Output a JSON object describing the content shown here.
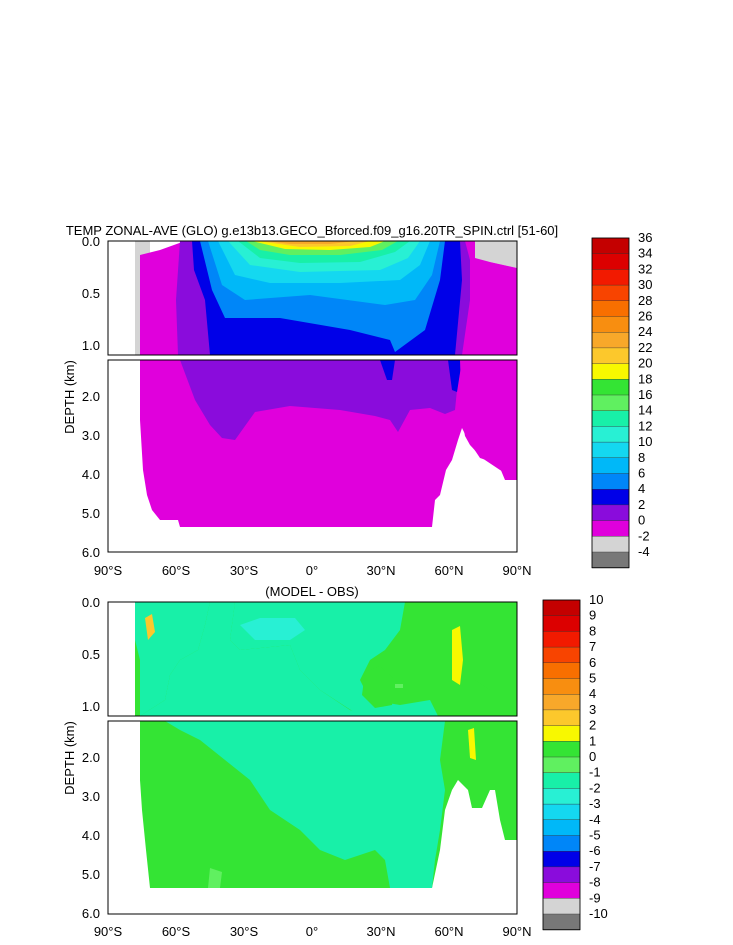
{
  "chart_data": [
    {
      "type": "heatmap",
      "title": "TEMP ZONAL-AVE (GLO) g.e13b13.GECO_Bforced.f09_g16.20TR_SPIN.ctrl [51-60]",
      "ylabel": "DEPTH (km)",
      "x_ticks": [
        "90°S",
        "60°S",
        "30°S",
        "0°",
        "30°N",
        "60°N",
        "90°N"
      ],
      "y_ticks_upper": [
        "0.0",
        "0.5",
        "1.0"
      ],
      "y_ticks_lower": [
        "2.0",
        "3.0",
        "4.0",
        "5.0",
        "6.0"
      ],
      "x_range": [
        -90,
        90
      ],
      "y_range_km": [
        0,
        6
      ],
      "colorbar": {
        "labels": [
          "36",
          "34",
          "32",
          "30",
          "28",
          "26",
          "24",
          "22",
          "20",
          "18",
          "16",
          "14",
          "12",
          "10",
          "8",
          "6",
          "4",
          "2",
          "0",
          "-2",
          "-4"
        ],
        "colors": [
          "#c40000",
          "#dc0000",
          "#f21a00",
          "#f84400",
          "#f86f00",
          "#f88e10",
          "#f8a82a",
          "#fcc82c",
          "#f8f800",
          "#34e434",
          "#60f060",
          "#18f0a8",
          "#28f0d4",
          "#14d8f0",
          "#00b8f8",
          "#0086f8",
          "#0000e8",
          "#8a0cdc",
          "#e000dc",
          "#d4d4d4",
          "#787878"
        ]
      }
    },
    {
      "type": "heatmap",
      "title": "(MODEL - OBS)",
      "ylabel": "DEPTH (km)",
      "x_ticks": [
        "90°S",
        "60°S",
        "30°S",
        "0°",
        "30°N",
        "60°N",
        "90°N"
      ],
      "y_ticks_upper": [
        "0.0",
        "0.5",
        "1.0"
      ],
      "y_ticks_lower": [
        "2.0",
        "3.0",
        "4.0",
        "5.0",
        "6.0"
      ],
      "x_range": [
        -90,
        90
      ],
      "y_range_km": [
        0,
        6
      ],
      "colorbar": {
        "labels": [
          "10",
          "9",
          "8",
          "7",
          "6",
          "5",
          "4",
          "3",
          "2",
          "1",
          "0",
          "-1",
          "-2",
          "-3",
          "-4",
          "-5",
          "-6",
          "-7",
          "-8",
          "-9",
          "-10"
        ],
        "colors": [
          "#c40000",
          "#dc0000",
          "#f21a00",
          "#f84400",
          "#f86f00",
          "#f88e10",
          "#f8a82a",
          "#fcc82c",
          "#f8f800",
          "#34e434",
          "#60f060",
          "#18f0a8",
          "#28f0d4",
          "#14d8f0",
          "#00b8f8",
          "#0086f8",
          "#0000e8",
          "#8a0cdc",
          "#e000dc",
          "#d4d4d4",
          "#787878"
        ]
      }
    }
  ]
}
